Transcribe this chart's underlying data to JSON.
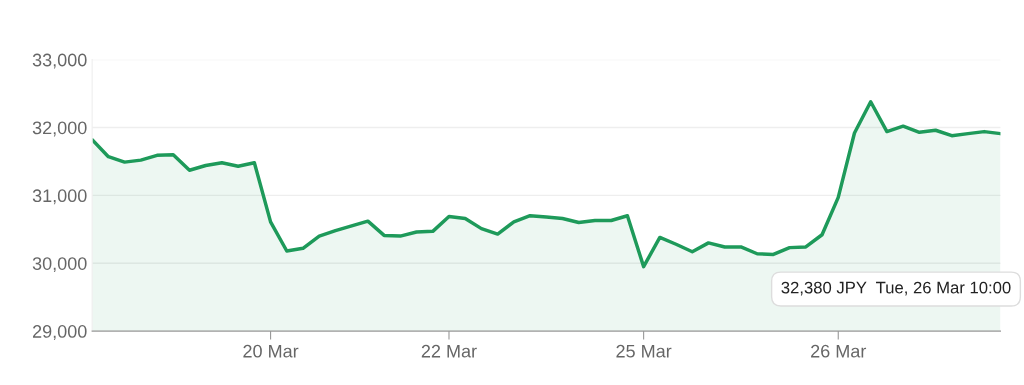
{
  "chart_data": {
    "type": "area",
    "categories": [
      null,
      null,
      null,
      null,
      null,
      null,
      null,
      null,
      null,
      null,
      null,
      "20 Mar",
      null,
      null,
      null,
      null,
      null,
      null,
      null,
      null,
      null,
      null,
      "22 Mar",
      null,
      null,
      null,
      null,
      null,
      null,
      null,
      null,
      null,
      null,
      null,
      "25 Mar",
      null,
      null,
      null,
      null,
      null,
      null,
      null,
      null,
      null,
      null,
      null,
      "26 Mar",
      null,
      null,
      null,
      null,
      null,
      null,
      null,
      null,
      null,
      null
    ],
    "series": [
      {
        "color": "#1e9a5a",
        "values": [
          31820,
          31570,
          31490,
          31520,
          31590,
          31600,
          31370,
          31440,
          31480,
          31430,
          31480,
          30610,
          30180,
          30220,
          30400,
          30480,
          30550,
          30620,
          30410,
          30400,
          30460,
          30470,
          30690,
          30660,
          30510,
          30430,
          30610,
          30700,
          30680,
          30660,
          30600,
          30630,
          30630,
          30700,
          29950,
          30380,
          30280,
          30170,
          30300,
          30240,
          30240,
          30140,
          30130,
          30230,
          30240,
          30420,
          30970,
          31920,
          32380,
          31940,
          32020,
          31930,
          31960,
          31880,
          31910,
          31940,
          31910
        ]
      }
    ],
    "ylim": [
      29000,
      33000
    ],
    "yticks": [
      {
        "value": 29000,
        "label": "29,000"
      },
      {
        "value": 30000,
        "label": "30,000"
      },
      {
        "value": 31000,
        "label": "31,000"
      },
      {
        "value": 32000,
        "label": "32,000"
      },
      {
        "value": 33000,
        "label": "33,000"
      }
    ],
    "grid": "y",
    "line_style": "solid",
    "annotations": [
      "32,380 JPY  Tue, 26 Mar 10:00"
    ]
  }
}
